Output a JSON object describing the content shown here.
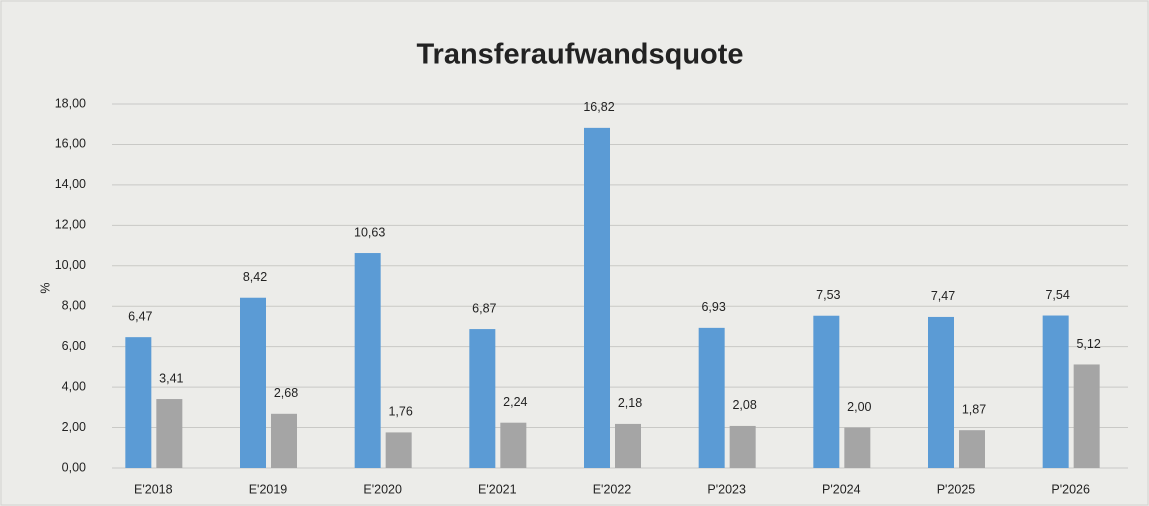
{
  "chart_data": {
    "type": "bar",
    "title": "Transferaufwandsquote",
    "y_label": "%",
    "categories": [
      "E'2018",
      "E'2019",
      "E'2020",
      "E'2021",
      "E'2022",
      "P'2023",
      "P'2024",
      "P'2025",
      "P'2026"
    ],
    "series": [
      {
        "color": "#5b9bd5",
        "values": [
          6.47,
          8.42,
          10.63,
          6.87,
          16.82,
          6.93,
          7.53,
          7.47,
          7.54
        ],
        "value_labels": [
          "6,47",
          "8,42",
          "10,63",
          "6,87",
          "16,82",
          "6,93",
          "7,53",
          "7,47",
          "7,54"
        ]
      },
      {
        "color": "#a5a5a5",
        "values": [
          3.41,
          2.68,
          1.76,
          2.24,
          2.18,
          2.08,
          2.0,
          1.87,
          5.12
        ],
        "value_labels": [
          "3,41",
          "2,68",
          "1,76",
          "2,24",
          "2,18",
          "2,08",
          "2,00",
          "1,87",
          "5,12"
        ]
      }
    ],
    "ylim": [
      0,
      18
    ],
    "yticks": [
      {
        "value": 0,
        "label": "0,00"
      },
      {
        "value": 2,
        "label": "2,00"
      },
      {
        "value": 4,
        "label": "4,00"
      },
      {
        "value": 6,
        "label": "6,00"
      },
      {
        "value": 8,
        "label": "8,00"
      },
      {
        "value": 10,
        "label": "10,00"
      },
      {
        "value": 12,
        "label": "12,00"
      },
      {
        "value": 14,
        "label": "14,00"
      },
      {
        "value": 16,
        "label": "16,00"
      },
      {
        "value": 18,
        "label": "18,00"
      }
    ],
    "grid": true
  }
}
